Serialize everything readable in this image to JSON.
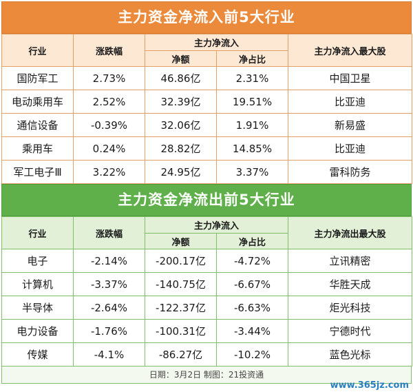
{
  "inflow": {
    "title": "主力资金净流入前5大行业",
    "headers": {
      "industry": "行业",
      "change": "涨跌幅",
      "net_flow": "主力净流入",
      "net_amount": "净额",
      "net_ratio": "净占比",
      "top_stock": "主力净流入最大股"
    },
    "rows": [
      {
        "industry": "国防军工",
        "change": "2.73%",
        "amount": "46.86亿",
        "ratio": "2.31%",
        "stock": "中国卫星"
      },
      {
        "industry": "电动乘用车",
        "change": "2.52%",
        "amount": "32.39亿",
        "ratio": "19.51%",
        "stock": "比亚迪"
      },
      {
        "industry": "通信设备",
        "change": "-0.39%",
        "amount": "32.06亿",
        "ratio": "1.91%",
        "stock": "新易盛"
      },
      {
        "industry": "乘用车",
        "change": "0.24%",
        "amount": "28.82亿",
        "ratio": "14.85%",
        "stock": "比亚迪"
      },
      {
        "industry": "军工电子Ⅲ",
        "change": "3.22%",
        "amount": "24.95亿",
        "ratio": "3.37%",
        "stock": "雷科防务"
      }
    ]
  },
  "outflow": {
    "title": "主力资金净流出前5大行业",
    "headers": {
      "industry": "行业",
      "change": "涨跌幅",
      "net_flow": "主力净流入",
      "net_amount": "净额",
      "net_ratio": "净占比",
      "top_stock": "主力净流出最大股"
    },
    "rows": [
      {
        "industry": "电子",
        "change": "-2.14%",
        "amount": "-200.17亿",
        "ratio": "-4.72%",
        "stock": "立讯精密"
      },
      {
        "industry": "计算机",
        "change": "-3.37%",
        "amount": "-140.75亿",
        "ratio": "-6.67%",
        "stock": "华胜天成"
      },
      {
        "industry": "半导体",
        "change": "-2.64%",
        "amount": "-122.37亿",
        "ratio": "-6.63%",
        "stock": "炬光科技"
      },
      {
        "industry": "电力设备",
        "change": "-1.76%",
        "amount": "-100.31亿",
        "ratio": "-3.44%",
        "stock": "宁德时代"
      },
      {
        "industry": "传媒",
        "change": "-4.1%",
        "amount": "-86.27亿",
        "ratio": "-10.2%",
        "stock": "蓝色光标"
      }
    ]
  },
  "footer": "日期：3月2日 制图：21投资通",
  "watermark": "www.365jz.com",
  "colors": {
    "inflow_banner": "#ec8a3c",
    "outflow_banner": "#5fb04a",
    "inflow_header": "#fde8d4",
    "outflow_header": "#e1f0d6"
  }
}
